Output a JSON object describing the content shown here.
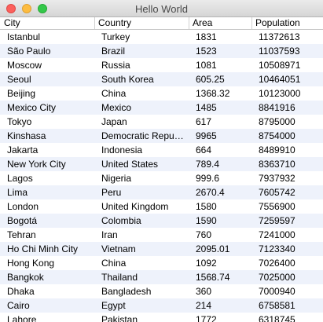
{
  "window": {
    "title": "Hello World"
  },
  "table": {
    "columns": [
      "City",
      "Country",
      "Area",
      "Population"
    ],
    "rows": [
      [
        "Istanbul",
        "Turkey",
        "1831",
        "11372613"
      ],
      [
        "São Paulo",
        "Brazil",
        "1523",
        "11037593"
      ],
      [
        "Moscow",
        "Russia",
        "1081",
        "10508971"
      ],
      [
        "Seoul",
        "South Korea",
        "605.25",
        "10464051"
      ],
      [
        "Beijing",
        "China",
        "1368.32",
        "10123000"
      ],
      [
        "Mexico City",
        "Mexico",
        "1485",
        "8841916"
      ],
      [
        "Tokyo",
        "Japan",
        "617",
        "8795000"
      ],
      [
        "Kinshasa",
        "Democratic Repub…",
        "9965",
        "8754000"
      ],
      [
        "Jakarta",
        "Indonesia",
        "664",
        "8489910"
      ],
      [
        "New York City",
        "United States",
        "789.4",
        "8363710"
      ],
      [
        "Lagos",
        "Nigeria",
        "999.6",
        "7937932"
      ],
      [
        "Lima",
        "Peru",
        "2670.4",
        "7605742"
      ],
      [
        "London",
        "United Kingdom",
        "1580",
        "7556900"
      ],
      [
        "Bogotá",
        "Colombia",
        "1590",
        "7259597"
      ],
      [
        "Tehran",
        "Iran",
        "760",
        "7241000"
      ],
      [
        "Ho Chi Minh City",
        "Vietnam",
        "2095.01",
        "7123340"
      ],
      [
        "Hong Kong",
        "China",
        "1092",
        "7026400"
      ],
      [
        "Bangkok",
        "Thailand",
        "1568.74",
        "7025000"
      ],
      [
        "Dhaka",
        "Bangladesh",
        "360",
        "7000940"
      ],
      [
        "Cairo",
        "Egypt",
        "214",
        "6758581"
      ],
      [
        "Lahore",
        "Pakistan",
        "1772",
        "6318745"
      ]
    ]
  }
}
